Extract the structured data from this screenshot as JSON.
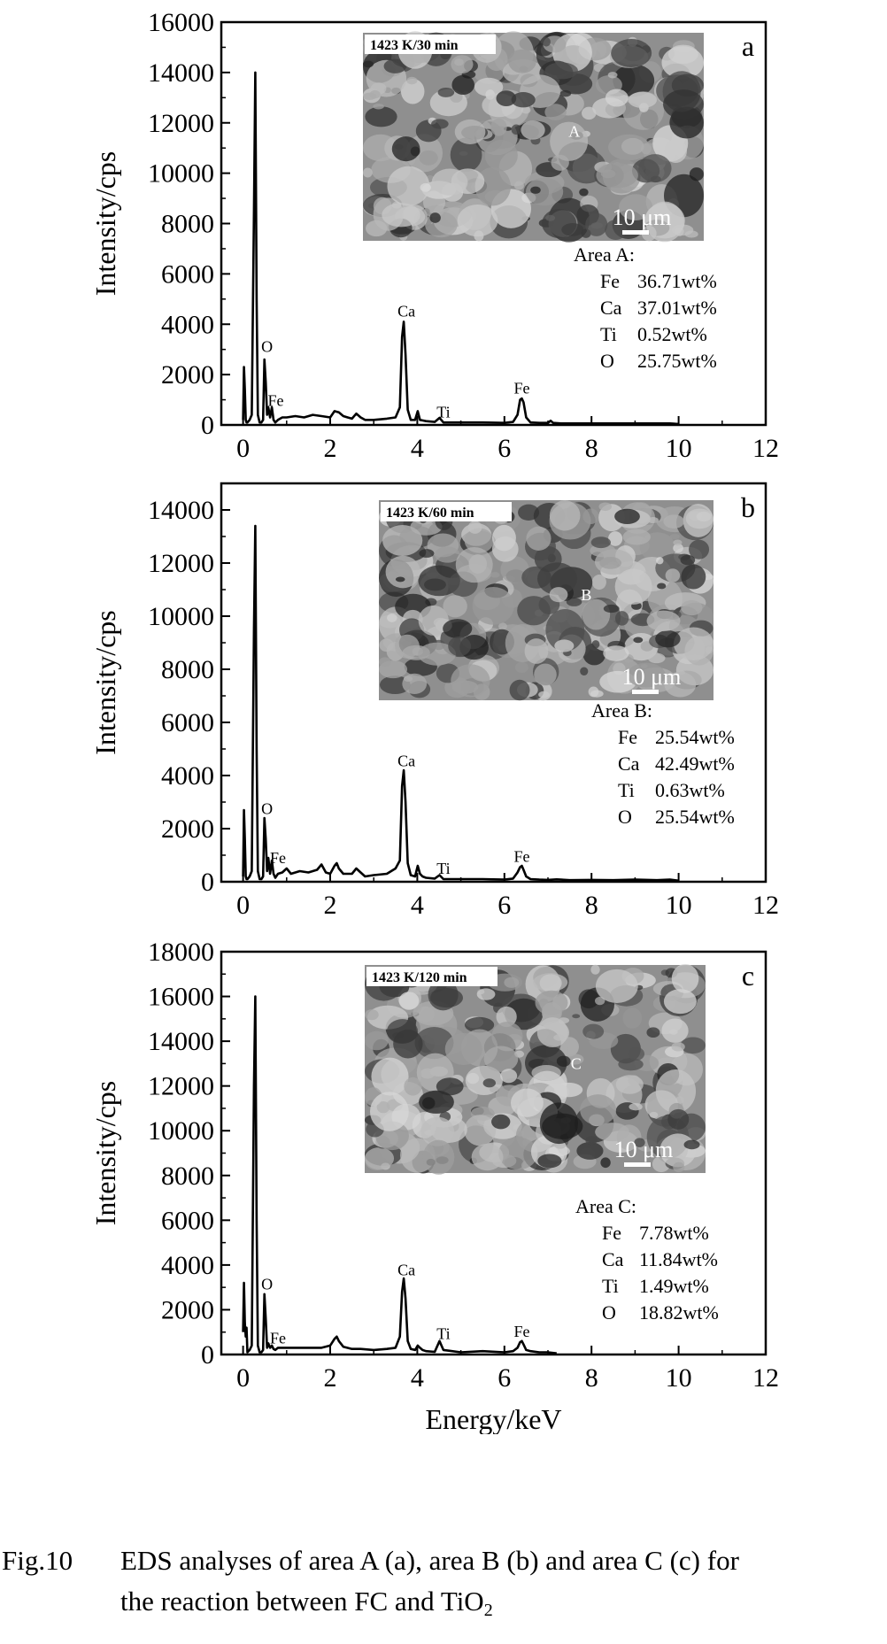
{
  "chart_data": [
    {
      "type": "line",
      "panel_label": "a",
      "xlabel": "",
      "ylabel": "Intensity/cps",
      "xlim": [
        -0.5,
        12
      ],
      "ylim": [
        0,
        16000
      ],
      "xticks": [
        "0",
        "2",
        "4",
        "6",
        "8",
        "10",
        "12"
      ],
      "yticks": [
        "0",
        "2000",
        "4000",
        "6000",
        "8000",
        "10000",
        "12000",
        "14000",
        "16000"
      ],
      "series": [
        {
          "x": [
            0,
            0.02,
            0.04,
            0.06,
            0.08,
            0.1,
            0.15,
            0.2,
            0.25,
            0.28,
            0.31,
            0.34,
            0.38,
            0.42,
            0.46,
            0.49,
            0.52,
            0.55,
            0.58,
            0.62,
            0.66,
            0.7,
            0.74,
            0.8,
            0.9,
            1.0,
            1.2,
            1.4,
            1.6,
            1.8,
            2.0,
            2.1,
            2.2,
            2.3,
            2.4,
            2.5,
            2.6,
            2.7,
            2.8,
            3.0,
            3.3,
            3.5,
            3.6,
            3.65,
            3.69,
            3.73,
            3.78,
            3.85,
            3.95,
            4.01,
            4.06,
            4.12,
            4.2,
            4.4,
            4.51,
            4.6,
            5.0,
            5.5,
            6.0,
            6.2,
            6.3,
            6.36,
            6.4,
            6.44,
            6.5,
            6.6,
            6.8,
            7.0,
            7.06,
            7.12,
            7.3,
            8.0,
            9.0,
            9.8,
            10.0
          ],
          "values": [
            200,
            2300,
            1400,
            200,
            100,
            100,
            200,
            400,
            8500,
            14000,
            5000,
            400,
            100,
            100,
            200,
            2600,
            1700,
            400,
            700,
            300,
            700,
            200,
            100,
            200,
            300,
            300,
            350,
            300,
            400,
            350,
            300,
            550,
            500,
            350,
            300,
            250,
            450,
            300,
            200,
            200,
            250,
            300,
            700,
            3500,
            4100,
            2800,
            600,
            200,
            200,
            550,
            200,
            180,
            150,
            120,
            280,
            100,
            100,
            100,
            80,
            120,
            400,
            1000,
            1050,
            900,
            300,
            100,
            80,
            80,
            170,
            80,
            60,
            60,
            60,
            60,
            40
          ]
        }
      ],
      "peak_labels": [
        {
          "x": 0.55,
          "y": 2900,
          "text": "O"
        },
        {
          "x": 0.75,
          "y": 750,
          "text": "Fe"
        },
        {
          "x": 3.75,
          "y": 4300,
          "text": "Ca"
        },
        {
          "x": 4.6,
          "y": 300,
          "text": "Ti"
        },
        {
          "x": 6.4,
          "y": 1250,
          "text": "Fe"
        }
      ],
      "inset_tag": "1423 K/30 min",
      "area_point": "A",
      "scale_bar": "10 μm",
      "composition_title": "Area A:",
      "composition": [
        {
          "element": "Fe",
          "value": "36.71wt%"
        },
        {
          "element": "Ca",
          "value": "37.01wt%"
        },
        {
          "element": "Ti",
          "value": "0.52wt%"
        },
        {
          "element": "O",
          "value": "25.75wt%"
        }
      ],
      "grid": false
    },
    {
      "type": "line",
      "panel_label": "b",
      "xlabel": "",
      "ylabel": "Intensity/cps",
      "xlim": [
        -0.5,
        12
      ],
      "ylim": [
        0,
        15000
      ],
      "xticks": [
        "0",
        "2",
        "4",
        "6",
        "8",
        "10",
        "12"
      ],
      "yticks": [
        "0",
        "2000",
        "4000",
        "6000",
        "8000",
        "10000",
        "12000",
        "14000"
      ],
      "series": [
        {
          "x": [
            0,
            0.02,
            0.04,
            0.06,
            0.08,
            0.1,
            0.15,
            0.2,
            0.25,
            0.28,
            0.31,
            0.34,
            0.38,
            0.42,
            0.46,
            0.49,
            0.52,
            0.55,
            0.58,
            0.62,
            0.66,
            0.7,
            0.74,
            0.8,
            0.9,
            1.0,
            1.1,
            1.3,
            1.5,
            1.7,
            1.8,
            1.9,
            2.0,
            2.1,
            2.15,
            2.2,
            2.3,
            2.5,
            2.6,
            2.7,
            2.8,
            3.0,
            3.3,
            3.5,
            3.6,
            3.65,
            3.69,
            3.73,
            3.78,
            3.85,
            3.95,
            4.01,
            4.06,
            4.12,
            4.2,
            4.4,
            4.51,
            4.6,
            5.0,
            5.5,
            6.0,
            6.2,
            6.3,
            6.36,
            6.4,
            6.44,
            6.5,
            6.6,
            6.8,
            7.0,
            7.2,
            7.5,
            8.0,
            8.5,
            9.0,
            9.5,
            9.8,
            10.0
          ],
          "values": [
            200,
            2700,
            1600,
            200,
            100,
            100,
            200,
            400,
            9500,
            13400,
            5000,
            400,
            100,
            100,
            200,
            2400,
            1600,
            400,
            900,
            300,
            800,
            300,
            150,
            300,
            350,
            500,
            300,
            400,
            350,
            450,
            650,
            350,
            300,
            600,
            700,
            500,
            300,
            300,
            500,
            350,
            200,
            250,
            300,
            500,
            800,
            3600,
            4200,
            3000,
            700,
            250,
            200,
            600,
            300,
            200,
            150,
            120,
            250,
            100,
            100,
            100,
            80,
            120,
            350,
            550,
            600,
            450,
            200,
            100,
            80,
            70,
            90,
            60,
            70,
            60,
            80,
            60,
            80,
            40
          ]
        }
      ],
      "peak_labels": [
        {
          "x": 0.55,
          "y": 2550,
          "text": "O"
        },
        {
          "x": 0.8,
          "y": 700,
          "text": "Fe"
        },
        {
          "x": 3.75,
          "y": 4350,
          "text": "Ca"
        },
        {
          "x": 4.6,
          "y": 300,
          "text": "Ti"
        },
        {
          "x": 6.4,
          "y": 750,
          "text": "Fe"
        }
      ],
      "inset_tag": "1423 K/60 min",
      "area_point": "B",
      "scale_bar": "10 μm",
      "composition_title": "Area B:",
      "composition": [
        {
          "element": "Fe",
          "value": "25.54wt%"
        },
        {
          "element": "Ca",
          "value": "42.49wt%"
        },
        {
          "element": "Ti",
          "value": "0.63wt%"
        },
        {
          "element": "O",
          "value": "25.54wt%"
        }
      ],
      "grid": false
    },
    {
      "type": "line",
      "panel_label": "c",
      "xlabel": "Energy/keV",
      "ylabel": "Intensity/cps",
      "xlim": [
        -0.5,
        12
      ],
      "ylim": [
        0,
        18000
      ],
      "xticks": [
        "0",
        "2",
        "4",
        "6",
        "8",
        "10",
        "12"
      ],
      "yticks": [
        "0",
        "2000",
        "4000",
        "6000",
        "8000",
        "10000",
        "12000",
        "14000",
        "16000",
        "18000"
      ],
      "series": [
        {
          "x": [
            0,
            0.02,
            0.04,
            0.06,
            0.08,
            0.1,
            0.15,
            0.2,
            0.25,
            0.28,
            0.31,
            0.34,
            0.38,
            0.42,
            0.46,
            0.49,
            0.52,
            0.55,
            0.58,
            0.62,
            0.66,
            0.7,
            0.74,
            0.8,
            0.9,
            1.0,
            1.2,
            1.5,
            1.8,
            2.0,
            2.1,
            2.15,
            2.2,
            2.3,
            2.5,
            2.7,
            3.0,
            3.3,
            3.5,
            3.6,
            3.65,
            3.69,
            3.73,
            3.78,
            3.85,
            3.95,
            4.01,
            4.06,
            4.12,
            4.2,
            4.4,
            4.51,
            4.6,
            5.0,
            5.5,
            6.0,
            6.2,
            6.3,
            6.36,
            6.4,
            6.44,
            6.5,
            6.6,
            6.8,
            7.0,
            7.2
          ],
          "values": [
            1000,
            3200,
            1400,
            800,
            1200,
            100,
            200,
            400,
            12000,
            16000,
            6000,
            400,
            100,
            100,
            200,
            2700,
            1600,
            300,
            500,
            300,
            400,
            250,
            200,
            300,
            300,
            300,
            300,
            300,
            300,
            400,
            700,
            800,
            600,
            350,
            250,
            250,
            200,
            250,
            300,
            800,
            2800,
            3400,
            2500,
            600,
            250,
            200,
            400,
            300,
            200,
            150,
            120,
            600,
            200,
            100,
            150,
            100,
            150,
            300,
            550,
            600,
            450,
            200,
            150,
            100,
            100,
            50
          ]
        }
      ],
      "peak_labels": [
        {
          "x": 0.55,
          "y": 2900,
          "text": "O"
        },
        {
          "x": 0.8,
          "y": 500,
          "text": "Fe"
        },
        {
          "x": 3.75,
          "y": 3550,
          "text": "Ca"
        },
        {
          "x": 4.6,
          "y": 700,
          "text": "Ti"
        },
        {
          "x": 6.4,
          "y": 800,
          "text": "Fe"
        }
      ],
      "inset_tag": "1423 K/120 min",
      "area_point": "C",
      "scale_bar": "10 μm",
      "composition_title": "Area C:",
      "composition": [
        {
          "element": "Fe",
          "value": "7.78wt%"
        },
        {
          "element": "Ca",
          "value": "11.84wt%"
        },
        {
          "element": "Ti",
          "value": "1.49wt%"
        },
        {
          "element": "O",
          "value": "18.82wt%"
        }
      ],
      "grid": false
    }
  ],
  "caption": {
    "label": "Fig.10",
    "line1": "EDS analyses of area A (a), area B (b) and area C (c) for",
    "line2_main": "the reaction between FC and TiO",
    "line2_sub": "2"
  }
}
